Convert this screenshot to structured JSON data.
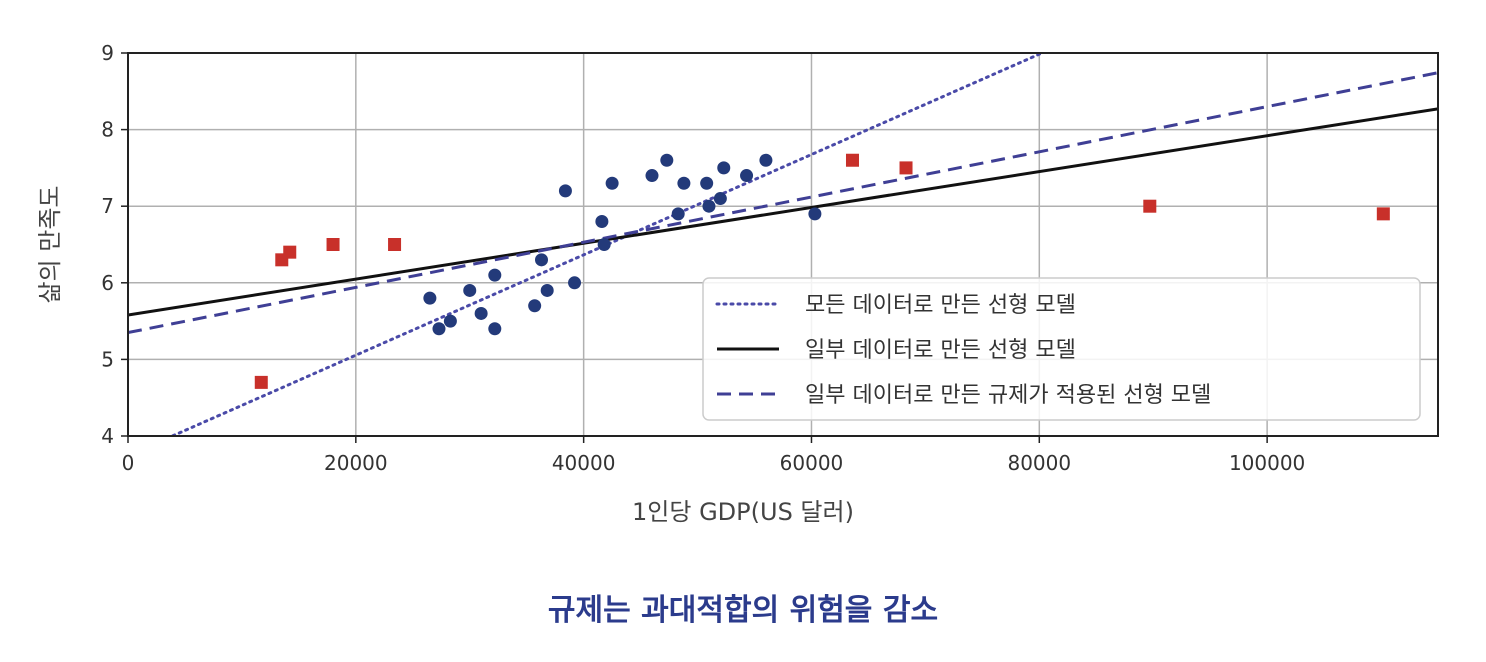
{
  "caption": "규제는 과대적합의 위험을 감소",
  "colors": {
    "point_blue": "#233a7a",
    "point_red": "#c8302a",
    "line_dotted": "#4a4aa8",
    "line_solid": "#111111",
    "line_dashed": "#3f3f95",
    "grid": "#b0b0b0"
  },
  "chart_data": {
    "type": "scatter",
    "xlabel": "1인당 GDP(US 달러)",
    "ylabel": "삶의 만족도",
    "xlim": [
      0,
      115000
    ],
    "ylim": [
      4,
      9
    ],
    "xticks": [
      0,
      20000,
      40000,
      60000,
      80000,
      100000
    ],
    "yticks": [
      4,
      5,
      6,
      7,
      8,
      9
    ],
    "grid": true,
    "legend_position": "lower-right",
    "series": [
      {
        "marker": "circle",
        "points": [
          [
            26500,
            5.8
          ],
          [
            27300,
            5.4
          ],
          [
            28300,
            5.5
          ],
          [
            30000,
            5.9
          ],
          [
            31000,
            5.6
          ],
          [
            32200,
            6.1
          ],
          [
            32200,
            5.4
          ],
          [
            35700,
            5.7
          ],
          [
            36300,
            6.3
          ],
          [
            36800,
            5.9
          ],
          [
            38400,
            7.2
          ],
          [
            39200,
            6.0
          ],
          [
            41600,
            6.8
          ],
          [
            41800,
            6.5
          ],
          [
            42500,
            7.3
          ],
          [
            46000,
            7.4
          ],
          [
            47300,
            7.6
          ],
          [
            48300,
            6.9
          ],
          [
            48800,
            7.3
          ],
          [
            50800,
            7.3
          ],
          [
            51000,
            7.0
          ],
          [
            52000,
            7.1
          ],
          [
            52300,
            7.5
          ],
          [
            54300,
            7.4
          ],
          [
            56000,
            7.6
          ],
          [
            60300,
            6.9
          ]
        ]
      },
      {
        "marker": "square",
        "points": [
          [
            11700,
            4.7
          ],
          [
            13500,
            6.3
          ],
          [
            14200,
            6.4
          ],
          [
            18000,
            6.5
          ],
          [
            23400,
            6.5
          ],
          [
            63600,
            7.6
          ],
          [
            68300,
            7.5
          ],
          [
            89700,
            7.0
          ],
          [
            110200,
            6.9
          ]
        ]
      }
    ],
    "lines": [
      {
        "name": "모든 데이터로 만든 선형 모델",
        "style": "dotted",
        "intercept": 3.745,
        "slope": 6.55e-05
      },
      {
        "name": "일부 데이터로 만든 선형 모델",
        "style": "solid",
        "intercept": 5.58,
        "slope": 2.34e-05
      },
      {
        "name": "일부 데이터로 만든 규제가 적용된 선형 모델",
        "style": "dashed",
        "intercept": 5.35,
        "slope": 2.95e-05
      }
    ]
  }
}
